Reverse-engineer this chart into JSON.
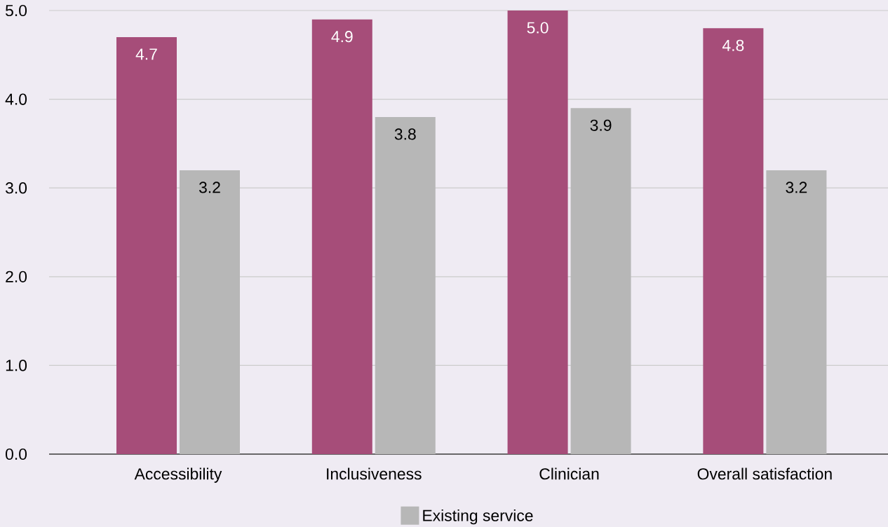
{
  "chart_data": {
    "type": "bar",
    "categories": [
      "Accessibility",
      "Inclusiveness",
      "Clinician",
      "Overall satisfaction"
    ],
    "series": [
      {
        "color": "#a64d79",
        "values": [
          4.7,
          4.9,
          5.0,
          4.8
        ],
        "value_labels": [
          "4.7",
          "4.9",
          "5.0",
          "4.8"
        ]
      },
      {
        "name": "Existing service",
        "color": "#b7b7b7",
        "values": [
          3.2,
          3.8,
          3.9,
          3.2
        ],
        "value_labels": [
          "3.2",
          "3.8",
          "3.9",
          "3.2"
        ]
      }
    ],
    "ylim": [
      0,
      5
    ],
    "yticks": [
      {
        "value": 0,
        "label": "0.0"
      },
      {
        "value": 1,
        "label": "1.0"
      },
      {
        "value": 2,
        "label": "2.0"
      },
      {
        "value": 3,
        "label": "3.0"
      },
      {
        "value": 4,
        "label": "4.0"
      },
      {
        "value": 5,
        "label": "5.0"
      }
    ],
    "grid": "y",
    "legend": "bottom"
  }
}
